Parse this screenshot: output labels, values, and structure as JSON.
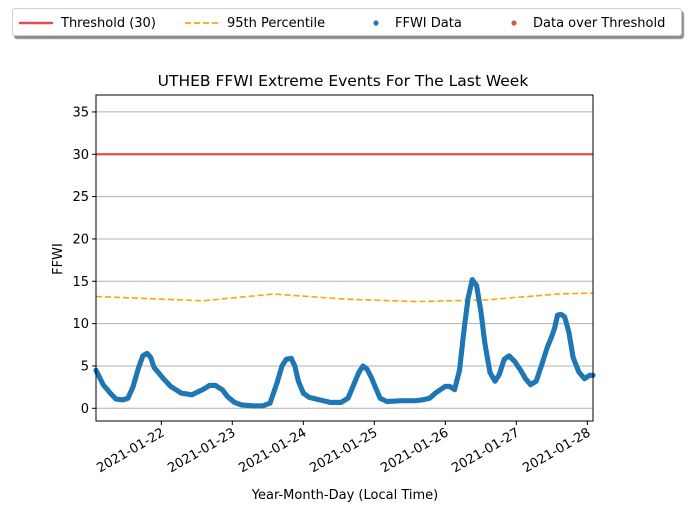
{
  "legend": {
    "threshold_label": "Threshold (30)",
    "p95_label": "95th Percentile",
    "data_label": "FFWI Data",
    "over_label": "Data over Threshold"
  },
  "colors": {
    "threshold": "#e84b4b",
    "p95": "#ffa500",
    "data": "#1f77b4",
    "over": "#d9534f",
    "grid": "#b0b0b0"
  },
  "chart_data": {
    "type": "scatter",
    "title": "UTHEB FFWI Extreme Events For The Last Week",
    "xlabel": "Year-Month-Day (Local Time)",
    "ylabel": "FFWI",
    "xlim": [
      0.0,
      7.0
    ],
    "x_origin_date": "2021-01-21 02:00",
    "ylim": [
      -1.5,
      37
    ],
    "y_ticks": [
      0,
      5,
      10,
      15,
      20,
      25,
      30,
      35
    ],
    "x_ticks": [
      {
        "x": 0.92,
        "label": "2021-01-22"
      },
      {
        "x": 1.92,
        "label": "2021-01-23"
      },
      {
        "x": 2.92,
        "label": "2021-01-24"
      },
      {
        "x": 3.92,
        "label": "2021-01-25"
      },
      {
        "x": 4.92,
        "label": "2021-01-26"
      },
      {
        "x": 5.92,
        "label": "2021-01-27"
      },
      {
        "x": 6.92,
        "label": "2021-01-28"
      }
    ],
    "grid": "y",
    "legend_position": "top",
    "threshold": 30,
    "p95": {
      "x": [
        0.0,
        1.5,
        2.5,
        3.5,
        4.5,
        5.5,
        6.5,
        7.0
      ],
      "y": [
        13.2,
        12.7,
        13.5,
        12.9,
        12.6,
        12.8,
        13.5,
        13.6
      ]
    },
    "ffwi": {
      "x": [
        0.0,
        0.1,
        0.2,
        0.28,
        0.38,
        0.45,
        0.52,
        0.6,
        0.66,
        0.72,
        0.77,
        0.82,
        0.88,
        0.95,
        1.05,
        1.2,
        1.35,
        1.5,
        1.6,
        1.68,
        1.78,
        1.85,
        1.95,
        2.05,
        2.2,
        2.35,
        2.45,
        2.55,
        2.62,
        2.68,
        2.75,
        2.8,
        2.85,
        2.92,
        3.0,
        3.15,
        3.3,
        3.45,
        3.55,
        3.62,
        3.7,
        3.76,
        3.82,
        3.88,
        3.94,
        4.0,
        4.1,
        4.3,
        4.5,
        4.6,
        4.7,
        4.78,
        4.85,
        4.92,
        4.98,
        5.05,
        5.12,
        5.18,
        5.24,
        5.3,
        5.36,
        5.42,
        5.48,
        5.55,
        5.62,
        5.68,
        5.75,
        5.82,
        5.9,
        5.98,
        6.05,
        6.12,
        6.2,
        6.28,
        6.36,
        6.42,
        6.46,
        6.5,
        6.55,
        6.6,
        6.66,
        6.72,
        6.8,
        6.88,
        6.95,
        7.0
      ],
      "y": [
        4.5,
        2.8,
        1.8,
        1.1,
        1.0,
        1.2,
        2.5,
        4.8,
        6.2,
        6.5,
        6.0,
        4.8,
        4.2,
        3.5,
        2.6,
        1.8,
        1.6,
        2.2,
        2.7,
        2.7,
        2.2,
        1.4,
        0.7,
        0.4,
        0.3,
        0.3,
        0.6,
        3.0,
        5.0,
        5.8,
        5.9,
        5.0,
        3.2,
        1.8,
        1.3,
        1.0,
        0.7,
        0.7,
        1.2,
        2.6,
        4.2,
        5.0,
        4.6,
        3.6,
        2.4,
        1.2,
        0.8,
        0.9,
        0.9,
        1.0,
        1.2,
        1.8,
        2.2,
        2.6,
        2.6,
        2.2,
        4.5,
        9.0,
        13.0,
        15.2,
        14.5,
        11.5,
        7.5,
        4.2,
        3.2,
        4.0,
        5.8,
        6.2,
        5.5,
        4.5,
        3.5,
        2.8,
        3.2,
        5.2,
        7.3,
        8.5,
        9.5,
        11.0,
        11.1,
        10.8,
        9.0,
        6.0,
        4.3,
        3.5,
        3.9,
        3.9
      ]
    }
  }
}
